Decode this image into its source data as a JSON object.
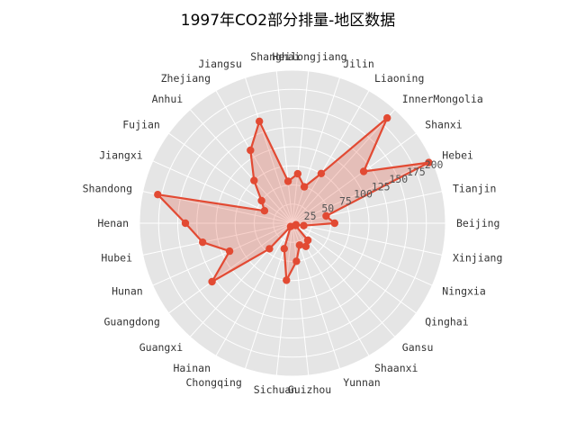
{
  "chart_data": {
    "type": "radar",
    "title": "1997年CO2部分排量-地区数据",
    "categories": [
      "Beijing",
      "Tianjin",
      "Hebei",
      "Shanxi",
      "InnerMongolia",
      "Liaoning",
      "Jilin",
      "Heilongjiang",
      "Shanghai",
      "Jiangsu",
      "Zhejiang",
      "Anhui",
      "Fujian",
      "Jiangxi",
      "Shandong",
      "Henan",
      "Hubei",
      "Hunan",
      "Guangdong",
      "Guangxi",
      "Hainan",
      "Chongqing",
      "Sichuan",
      "Guizhou",
      "Yunnan",
      "Shaanxi",
      "Gansu",
      "Qinghai",
      "Ningxia",
      "Xinjiang"
    ],
    "values": [
      55,
      45,
      195,
      115,
      185,
      75,
      50,
      65,
      55,
      140,
      110,
      75,
      50,
      40,
      180,
      140,
      120,
      90,
      130,
      45,
      5,
      35,
      75,
      50,
      30,
      35,
      30,
      5,
      5,
      15
    ],
    "rlim": [
      0,
      200
    ],
    "rticks": [
      25,
      50,
      75,
      100,
      125,
      150,
      175,
      200
    ],
    "rtick_labels": [
      "25",
      "50",
      "75",
      "100",
      "125",
      "150",
      "175",
      "200"
    ],
    "line_color": "#E24A33",
    "fill_color": "#E24A33",
    "background_color": "#E5E5E5",
    "grid": true
  }
}
